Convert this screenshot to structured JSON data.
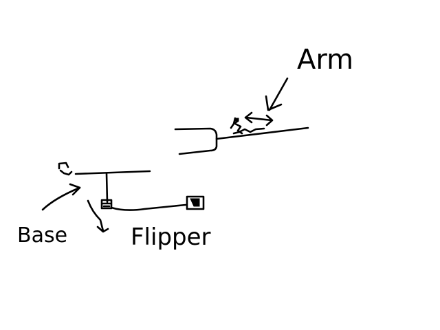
{
  "labels": {
    "arm": "Arm",
    "base": "Base",
    "flipper": "Flipper"
  },
  "colors": {
    "background": "#ffffff",
    "ink": "#000000"
  }
}
